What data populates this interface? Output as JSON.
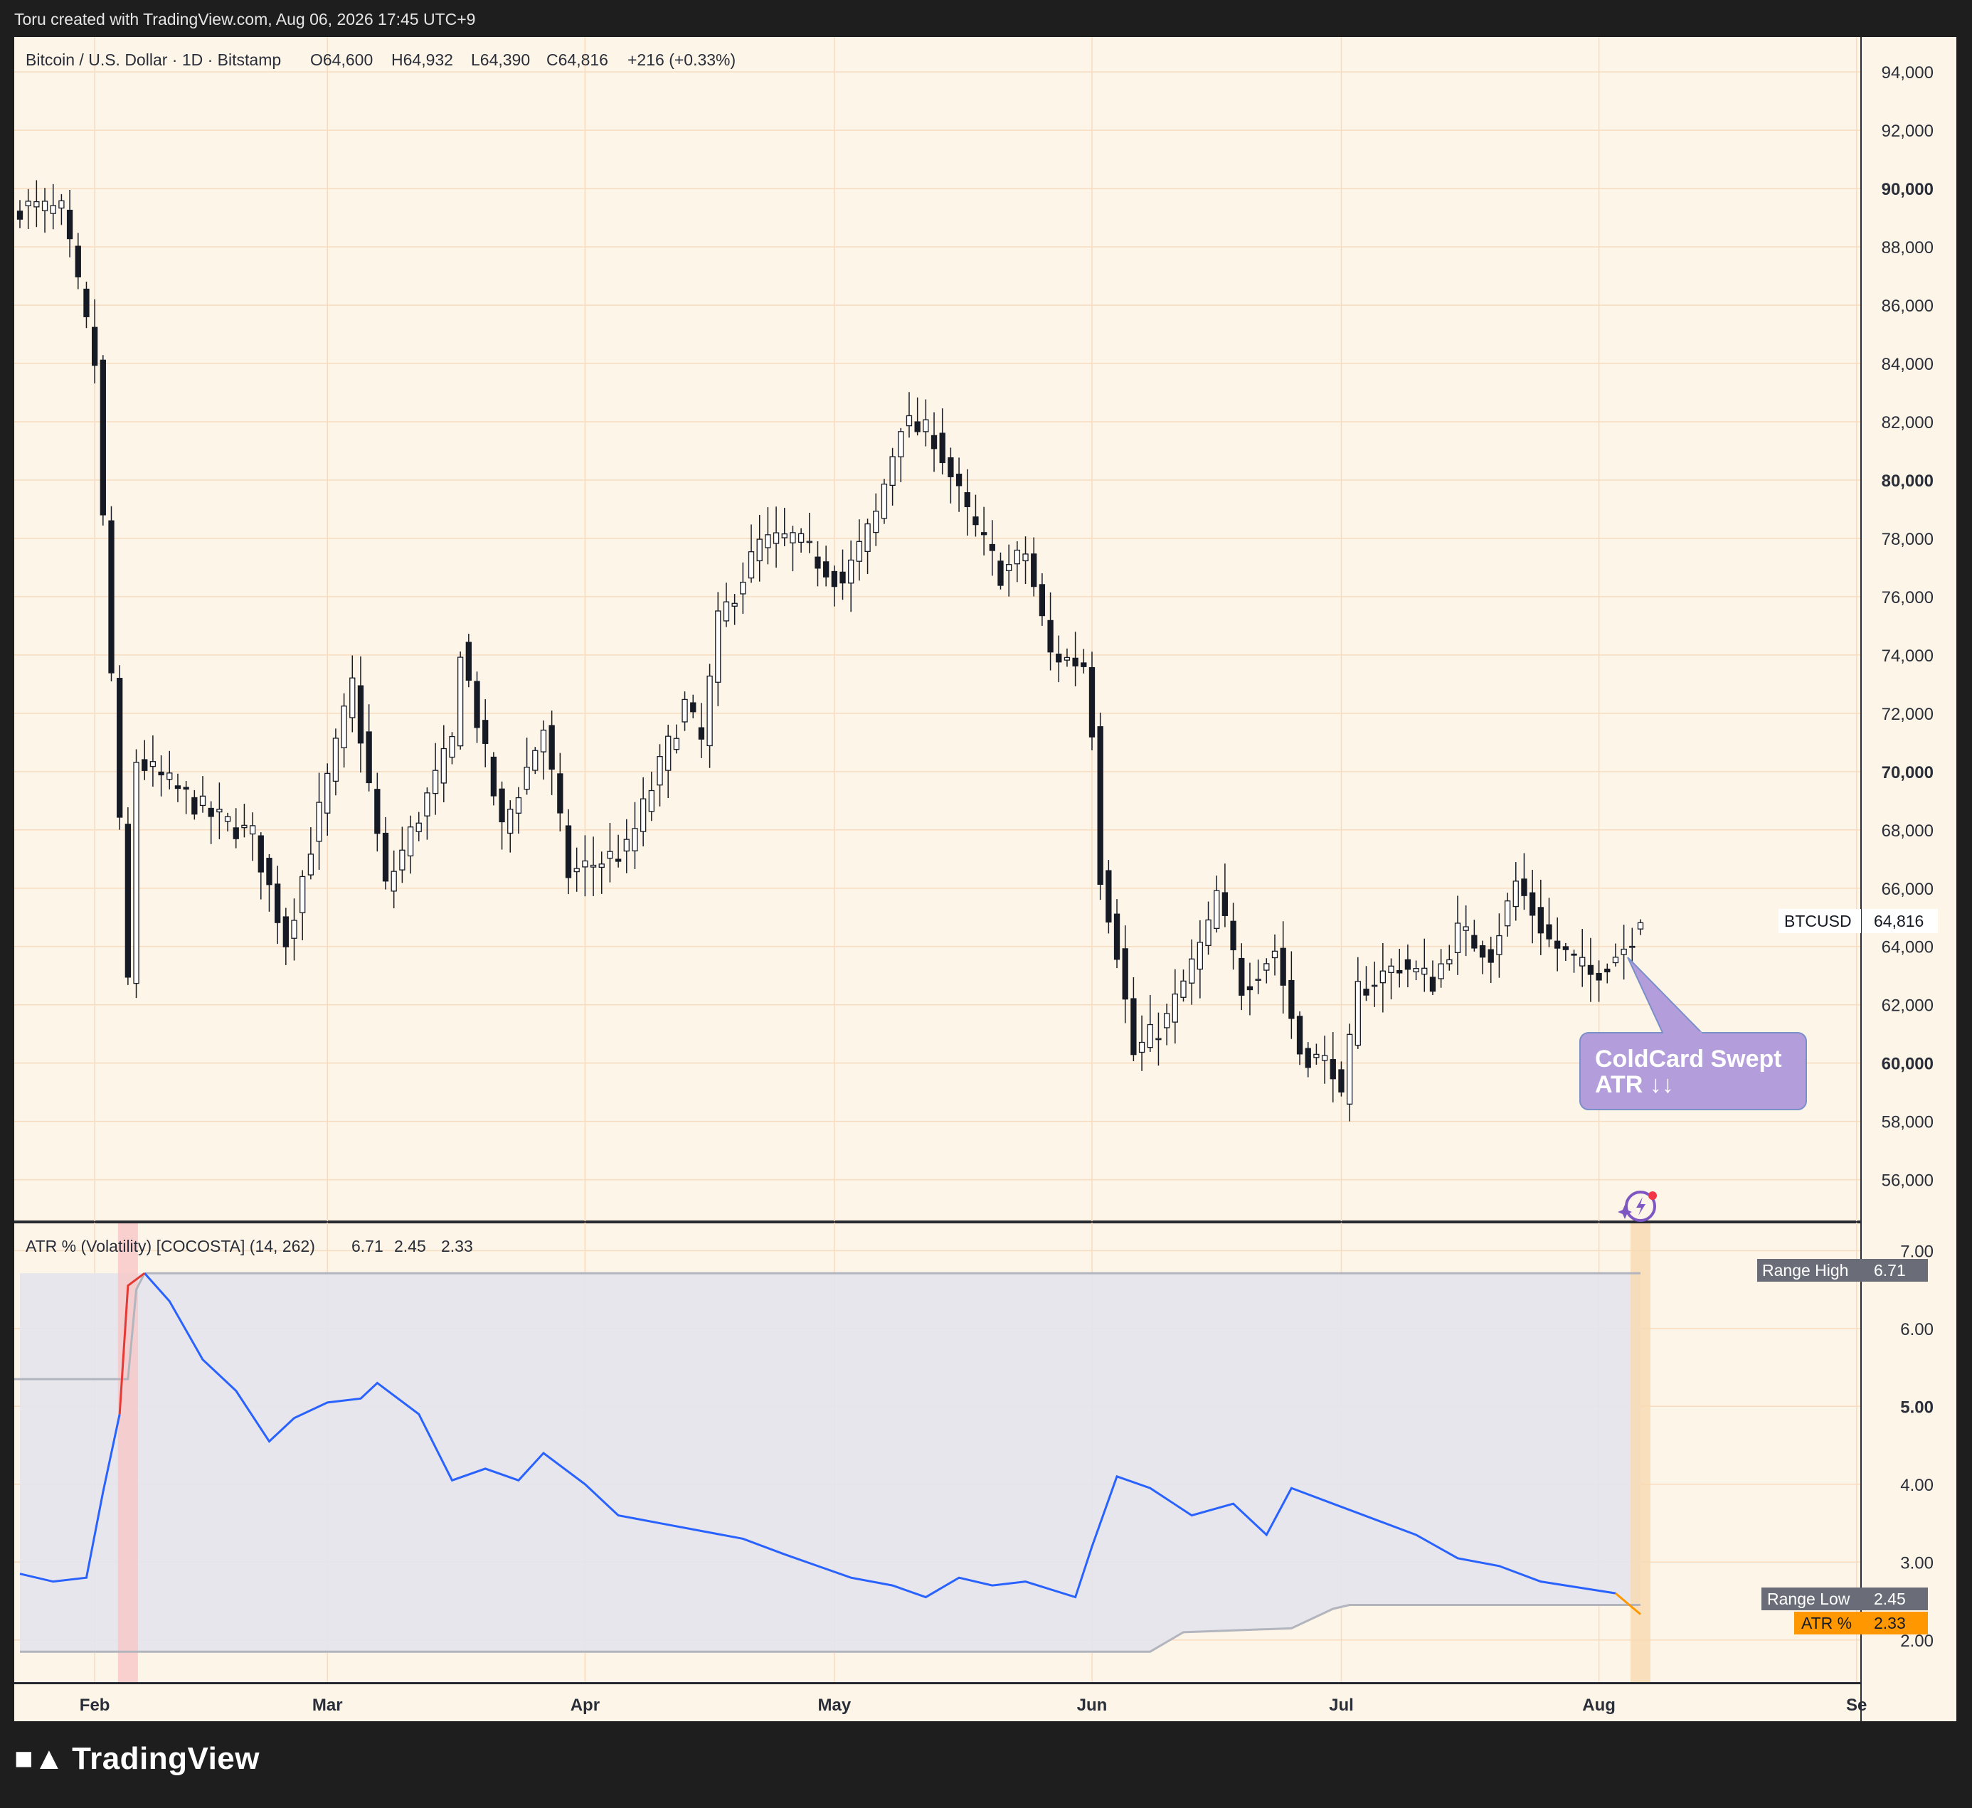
{
  "header": {
    "attribution": "Toru created with TradingView.com, Aug 06, 2026 17:45 UTC+9"
  },
  "footer": {
    "logo_text": "TradingView"
  },
  "colors": {
    "background": "#fdf5e8",
    "frame": "#1e1e1e",
    "grid": "#f7dcc0",
    "candle_up_body": "#ffffff",
    "candle_down_body": "#161a25",
    "candle_outline": "#161a25",
    "atr_line": "#2962ff",
    "atr_spike": "#e53935",
    "atr_tail": "#ff9800",
    "range_line": "#b2b5be",
    "range_fill": "#e3e4ec",
    "callout": "#b39ddb"
  },
  "price_pane": {
    "legend": {
      "symbol": "Bitcoin / U.S. Dollar · 1D · Bitstamp",
      "open": "O64,600",
      "high": "H64,932",
      "low": "L64,390",
      "close": "C64,816",
      "change": "+216 (+0.33%)"
    },
    "y_ticks": [
      "94,000",
      "92,000",
      "90,000",
      "88,000",
      "86,000",
      "84,000",
      "82,000",
      "80,000",
      "78,000",
      "76,000",
      "74,000",
      "72,000",
      "70,000",
      "68,000",
      "66,000",
      "64,000",
      "62,000",
      "60,000",
      "58,000",
      "56,000"
    ],
    "last_price": {
      "symbol": "BTCUSD",
      "value": "64,816"
    },
    "callout": {
      "line1": "ColdCard Swept",
      "line2": "ATR ↓↓"
    },
    "icon": "sparkle-bolt-icon"
  },
  "atr_pane": {
    "legend": {
      "title": "ATR % (Volatility) [COCOSTA] (14, 262)",
      "v1": "6.71",
      "v2": "2.45",
      "v3": "2.33"
    },
    "y_ticks": [
      "7.00",
      "6.00",
      "5.00",
      "4.00",
      "3.00",
      "2.00"
    ],
    "tags": {
      "range_high_label": "Range High",
      "range_high_value": "6.71",
      "range_low_label": "Range Low",
      "range_low_value": "2.45",
      "atr_label": "ATR %",
      "atr_value": "2.33"
    }
  },
  "x_axis": {
    "months": [
      "Feb",
      "Mar",
      "Apr",
      "May",
      "Jun",
      "Jul",
      "Aug",
      "Se"
    ]
  },
  "chart_data": [
    {
      "type": "candlestick",
      "title": "Bitcoin / U.S. Dollar · 1D · Bitstamp",
      "x_range": [
        "2026-01-23",
        "2026-08-06"
      ],
      "ylim": [
        54600,
        95200
      ],
      "ohlc_anchor_points": [
        {
          "date": "2026-01-23",
          "close": 89400
        },
        {
          "date": "2026-01-28",
          "close": 89200
        },
        {
          "date": "2026-02-01",
          "close": 84000
        },
        {
          "date": "2026-02-02",
          "close": 78600
        },
        {
          "date": "2026-02-05",
          "close": 62800
        },
        {
          "date": "2026-02-06",
          "close": 70400
        },
        {
          "date": "2026-02-15",
          "close": 68500
        },
        {
          "date": "2026-02-20",
          "close": 67800
        },
        {
          "date": "2026-02-24",
          "close": 64200
        },
        {
          "date": "2026-03-04",
          "close": 73000
        },
        {
          "date": "2026-03-08",
          "close": 66000
        },
        {
          "date": "2026-03-16",
          "close": 71000
        },
        {
          "date": "2026-03-17",
          "close": 74300
        },
        {
          "date": "2026-03-22",
          "close": 68000
        },
        {
          "date": "2026-03-27",
          "close": 71500
        },
        {
          "date": "2026-03-30",
          "close": 66500
        },
        {
          "date": "2026-04-06",
          "close": 67300
        },
        {
          "date": "2026-04-13",
          "close": 72300
        },
        {
          "date": "2026-04-15",
          "close": 71000
        },
        {
          "date": "2026-04-17",
          "close": 75100
        },
        {
          "date": "2026-04-22",
          "close": 77800
        },
        {
          "date": "2026-04-26",
          "close": 78000
        },
        {
          "date": "2026-05-02",
          "close": 76500
        },
        {
          "date": "2026-05-06",
          "close": 78800
        },
        {
          "date": "2026-05-09",
          "close": 82000
        },
        {
          "date": "2026-05-13",
          "close": 81500
        },
        {
          "date": "2026-05-17",
          "close": 78800
        },
        {
          "date": "2026-05-21",
          "close": 76800
        },
        {
          "date": "2026-05-24",
          "close": 77500
        },
        {
          "date": "2026-05-27",
          "close": 74000
        },
        {
          "date": "2026-05-31",
          "close": 73700
        },
        {
          "date": "2026-06-01",
          "close": 71500
        },
        {
          "date": "2026-06-02",
          "close": 66500
        },
        {
          "date": "2026-06-04",
          "close": 63900
        },
        {
          "date": "2026-06-06",
          "close": 60300
        },
        {
          "date": "2026-06-10",
          "close": 61500
        },
        {
          "date": "2026-06-15",
          "close": 64600
        },
        {
          "date": "2026-06-16",
          "close": 65800
        },
        {
          "date": "2026-06-19",
          "close": 62600
        },
        {
          "date": "2026-06-23",
          "close": 63900
        },
        {
          "date": "2026-06-26",
          "close": 60400
        },
        {
          "date": "2026-06-30",
          "close": 59900
        },
        {
          "date": "2026-07-01",
          "close": 58600
        },
        {
          "date": "2026-07-03",
          "close": 62500
        },
        {
          "date": "2026-07-08",
          "close": 63400
        },
        {
          "date": "2026-07-12",
          "close": 62800
        },
        {
          "date": "2026-07-15",
          "close": 64500
        },
        {
          "date": "2026-07-19",
          "close": 63800
        },
        {
          "date": "2026-07-22",
          "close": 66200
        },
        {
          "date": "2026-07-26",
          "close": 64200
        },
        {
          "date": "2026-07-31",
          "close": 63000
        },
        {
          "date": "2026-08-04",
          "close": 64000
        },
        {
          "date": "2026-08-06",
          "open": 64600,
          "high": 64932,
          "low": 64390,
          "close": 64816
        }
      ],
      "last_price": 64816,
      "annotation": "ColdCard Swept ATR ↓↓"
    },
    {
      "type": "line",
      "title": "ATR % (Volatility) [COCOSTA] (14, 262)",
      "ylim": [
        1.45,
        7.35
      ],
      "series": [
        {
          "name": "ATR %",
          "points": [
            {
              "date": "2026-01-23",
              "y": 2.85
            },
            {
              "date": "2026-01-27",
              "y": 2.75
            },
            {
              "date": "2026-01-31",
              "y": 2.8
            },
            {
              "date": "2026-02-02",
              "y": 3.9
            },
            {
              "date": "2026-02-04",
              "y": 4.9
            },
            {
              "date": "2026-02-05",
              "y": 6.55
            },
            {
              "date": "2026-02-07",
              "y": 6.71
            },
            {
              "date": "2026-02-10",
              "y": 6.35
            },
            {
              "date": "2026-02-14",
              "y": 5.6
            },
            {
              "date": "2026-02-18",
              "y": 5.2
            },
            {
              "date": "2026-02-22",
              "y": 4.55
            },
            {
              "date": "2026-02-25",
              "y": 4.85
            },
            {
              "date": "2026-03-01",
              "y": 5.05
            },
            {
              "date": "2026-03-05",
              "y": 5.1
            },
            {
              "date": "2026-03-07",
              "y": 5.3
            },
            {
              "date": "2026-03-12",
              "y": 4.9
            },
            {
              "date": "2026-03-16",
              "y": 4.05
            },
            {
              "date": "2026-03-20",
              "y": 4.2
            },
            {
              "date": "2026-03-24",
              "y": 4.05
            },
            {
              "date": "2026-03-27",
              "y": 4.4
            },
            {
              "date": "2026-04-01",
              "y": 4.0
            },
            {
              "date": "2026-04-05",
              "y": 3.6
            },
            {
              "date": "2026-04-10",
              "y": 3.5
            },
            {
              "date": "2026-04-15",
              "y": 3.4
            },
            {
              "date": "2026-04-20",
              "y": 3.3
            },
            {
              "date": "2026-04-25",
              "y": 3.1
            },
            {
              "date": "2026-04-29",
              "y": 2.95
            },
            {
              "date": "2026-05-03",
              "y": 2.8
            },
            {
              "date": "2026-05-08",
              "y": 2.7
            },
            {
              "date": "2026-05-12",
              "y": 2.55
            },
            {
              "date": "2026-05-16",
              "y": 2.8
            },
            {
              "date": "2026-05-20",
              "y": 2.7
            },
            {
              "date": "2026-05-24",
              "y": 2.75
            },
            {
              "date": "2026-05-30",
              "y": 2.55
            },
            {
              "date": "2026-06-01",
              "y": 3.2
            },
            {
              "date": "2026-06-04",
              "y": 4.1
            },
            {
              "date": "2026-06-08",
              "y": 3.95
            },
            {
              "date": "2026-06-13",
              "y": 3.6
            },
            {
              "date": "2026-06-18",
              "y": 3.75
            },
            {
              "date": "2026-06-22",
              "y": 3.35
            },
            {
              "date": "2026-06-25",
              "y": 3.95
            },
            {
              "date": "2026-06-30",
              "y": 3.75
            },
            {
              "date": "2026-07-05",
              "y": 3.55
            },
            {
              "date": "2026-07-10",
              "y": 3.35
            },
            {
              "date": "2026-07-15",
              "y": 3.05
            },
            {
              "date": "2026-07-20",
              "y": 2.95
            },
            {
              "date": "2026-07-25",
              "y": 2.75
            },
            {
              "date": "2026-07-31",
              "y": 2.65
            },
            {
              "date": "2026-08-03",
              "y": 2.6
            },
            {
              "date": "2026-08-06",
              "y": 2.33
            }
          ]
        },
        {
          "name": "Range High",
          "value": 6.71
        },
        {
          "name": "Range Low",
          "points": [
            {
              "date": "2026-01-23",
              "y": 1.85
            },
            {
              "date": "2026-06-08",
              "y": 1.85
            },
            {
              "date": "2026-06-12",
              "y": 2.1
            },
            {
              "date": "2026-06-25",
              "y": 2.15
            },
            {
              "date": "2026-06-30",
              "y": 2.4
            },
            {
              "date": "2026-07-02",
              "y": 2.45
            },
            {
              "date": "2026-08-06",
              "y": 2.45
            }
          ]
        }
      ],
      "highlight_dates": [
        "2026-02-05",
        "2026-08-06"
      ]
    }
  ]
}
